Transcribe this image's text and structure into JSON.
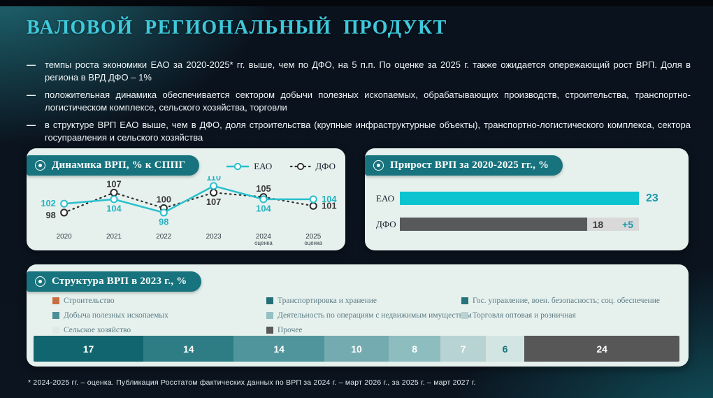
{
  "ui": {
    "bullet_marker": "—"
  },
  "title": "ВАЛОВОЙ РЕГИОНАЛЬНЫЙ ПРОДУКТ",
  "bullets": [
    "темпы роста экономики ЕАО за 2020-2025* гг. выше, чем по ДФО, на 5 п.п. По оценке за 2025 г. также  ожидается опережающий рост ВРП. Доля в региона в ВРД ДФО – 1%",
    "положительная динамика обеспечивается сектором добычи полезных ископаемых, обрабатывающих производств, строительства, транспортно-логистическом комплексе, сельского хозяйства, торговли",
    "в структуре ВРП ЕАО выше, чем в ДФО, доля строительства (крупные инфраструктурные объекты), транспортно-логистического комплекса, сектора госуправления и сельского хозяйства"
  ],
  "footnote": "* 2024-2025 гг. – оценка. Публикация Росстатом фактических данных по ВРП за 2024 г. – март 2026 г., за 2025 г. – март 2027 г.",
  "colors": {
    "background": "#0b141f",
    "accent_teal": "#17737d",
    "title_cyan": "#3ec9db",
    "panel_bg": "#e6f1ee",
    "eao_line": "#2abfcb",
    "dfo_line": "#2b2b2b",
    "eao_bar": "#0cc4cf",
    "dfo_bar": "#58595b",
    "dfo_extra_bar": "#d9d9d9"
  },
  "chart_data": [
    {
      "id": "vrp-dynamics",
      "type": "line",
      "title": "Динамика ВРП, % к СППГ",
      "categories": [
        "2020",
        "2021",
        "2022",
        "2023",
        "2024",
        "2025"
      ],
      "category_notes": [
        "",
        "",
        "",
        "",
        "оценка",
        "оценка"
      ],
      "series": [
        {
          "name": "ЕАО",
          "style": "solid",
          "color": "#2abfcb",
          "label_color": "#27b2c0",
          "values": [
            102,
            104,
            98,
            110,
            104,
            104
          ]
        },
        {
          "name": "ДФО",
          "style": "dotted",
          "color": "#2b2b2b",
          "label_color": "#3a3a3a",
          "values": [
            98,
            107,
            100,
            107,
            105,
            101
          ]
        }
      ],
      "ylim": [
        95,
        113
      ],
      "grid": false,
      "legend_position": "top-right"
    },
    {
      "id": "vrp-growth",
      "type": "bar",
      "title": "Прирост ВРП за 2020-2025 гг., %",
      "xmax": 23,
      "rows": [
        {
          "label": "ЕАО",
          "value": 23,
          "color": "#0cc4cf"
        },
        {
          "label": "ДФО",
          "value": 18,
          "color": "#58595b",
          "extra_value": "+5",
          "extra_total": 23,
          "extra_color": "#d9d9d9"
        }
      ]
    },
    {
      "id": "vrp-structure",
      "type": "stacked-bar",
      "title": "Структура ВРП в 2023 г., %",
      "segments": [
        {
          "value": 17,
          "color": "#11656e",
          "text_color": "#ffffff"
        },
        {
          "value": 14,
          "color": "#2e7d84",
          "text_color": "#ffffff"
        },
        {
          "value": 14,
          "color": "#4f959b",
          "text_color": "#ffffff"
        },
        {
          "value": 10,
          "color": "#74abb0",
          "text_color": "#ffffff"
        },
        {
          "value": 8,
          "color": "#8ebdc0",
          "text_color": "#ffffff"
        },
        {
          "value": 7,
          "color": "#b7d3d3",
          "text_color": "#ffffff"
        },
        {
          "value": 6,
          "color": "#d3e5e2",
          "text_color": "#17737d"
        },
        {
          "value": 24,
          "color": "#575757",
          "text_color": "#ffffff"
        }
      ],
      "legend_columns": [
        [
          {
            "label": "Строительство",
            "color": "#c76f41"
          },
          {
            "label": "Добыча полезных ископаемых",
            "color": "#4b9096"
          },
          {
            "label": "Сельское хозяйство",
            "color": "#dfeae6"
          }
        ],
        [
          {
            "label": "Транспортировка и хранение",
            "color": "#246f77"
          },
          {
            "label": "Деятельность по операциям с недвижимым имуществом",
            "color": "#93c1c3"
          },
          {
            "label": "Прочее",
            "color": "#595959"
          }
        ],
        [
          {
            "label": "Гос. управление, воен. безопасность; соц. обеспечение",
            "color": "#23747b"
          },
          {
            "label": "Торговля оптовая и розничная",
            "color": "#bad2d1"
          }
        ]
      ]
    }
  ]
}
